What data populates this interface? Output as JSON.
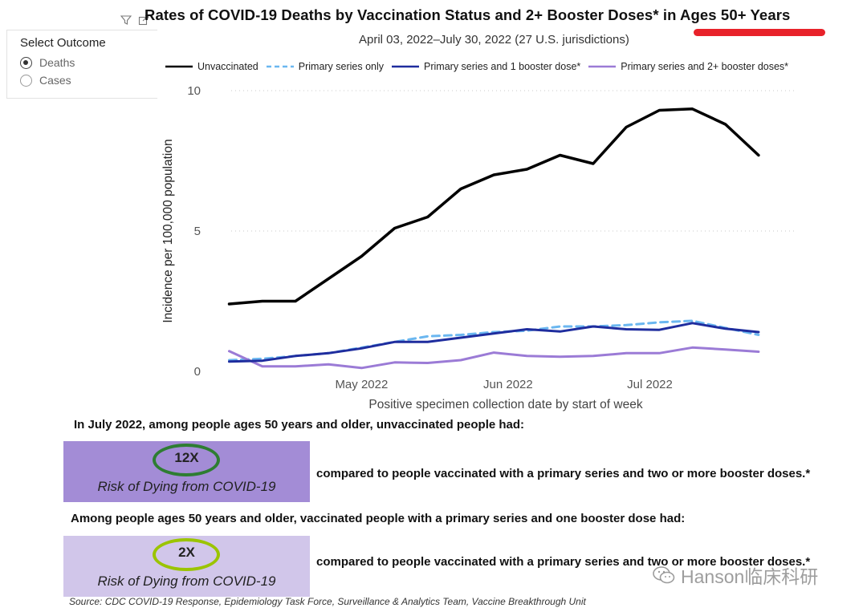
{
  "filter": {
    "title": "Select Outcome",
    "options": [
      {
        "label": "Deaths",
        "selected": true
      },
      {
        "label": "Cases",
        "selected": false
      }
    ]
  },
  "header": {
    "title": "Rates of COVID-19 Deaths by Vaccination Status and 2+ Booster Doses* in Ages 50+ Years",
    "subtitle": "April 03, 2022–July 30, 2022 (27 U.S. jurisdictions)",
    "highlight_color": "#e8222a"
  },
  "colors": {
    "unvaccinated": "#000000",
    "primary_only": "#6bb7f0",
    "one_booster": "#1f2d9e",
    "two_booster": "#9b7bd6",
    "box_dark": "#a38cd6",
    "box_light": "#d1c6ea",
    "ring_dark": "#2e7d32",
    "ring_light": "#9bc400"
  },
  "chart_data": {
    "type": "line",
    "title": "Rates of COVID-19 Deaths by Vaccination Status and 2+ Booster Doses* in Ages 50+ Years",
    "subtitle": "April 03, 2022–July 30, 2022 (27 U.S. jurisdictions)",
    "xlabel": "Positive specimen collection date by start of week",
    "ylabel": "Incidence per 100,000 population",
    "ylim": [
      0,
      10
    ],
    "y_ticks": [
      0,
      5,
      10
    ],
    "x_ticks": [
      "May 2022",
      "Jun 2022",
      "Jul 2022"
    ],
    "x": [
      "2022-04-03",
      "2022-04-10",
      "2022-04-17",
      "2022-04-24",
      "2022-05-01",
      "2022-05-08",
      "2022-05-15",
      "2022-05-22",
      "2022-05-29",
      "2022-06-05",
      "2022-06-12",
      "2022-06-19",
      "2022-06-26",
      "2022-07-03",
      "2022-07-10",
      "2022-07-17",
      "2022-07-24"
    ],
    "grid": "horizontal dotted",
    "legend": "top",
    "series": [
      {
        "name": "Unvaccinated",
        "style": "solid",
        "values": [
          2.4,
          2.5,
          2.5,
          3.3,
          4.1,
          5.1,
          5.5,
          6.5,
          7.0,
          7.2,
          7.7,
          7.4,
          8.7,
          9.3,
          9.35,
          8.8,
          7.7
        ]
      },
      {
        "name": "Primary series only",
        "style": "dashed",
        "values": [
          0.4,
          0.45,
          0.55,
          0.65,
          0.85,
          1.05,
          1.25,
          1.3,
          1.4,
          1.45,
          1.6,
          1.6,
          1.65,
          1.75,
          1.8,
          1.55,
          1.3
        ]
      },
      {
        "name": "Primary series and 1 booster dose*",
        "style": "solid",
        "values": [
          0.35,
          0.38,
          0.55,
          0.65,
          0.82,
          1.05,
          1.05,
          1.2,
          1.35,
          1.5,
          1.42,
          1.6,
          1.5,
          1.48,
          1.72,
          1.52,
          1.4
        ]
      },
      {
        "name": "Primary series and 2+ booster doses*",
        "style": "solid",
        "values": [
          0.72,
          0.18,
          0.18,
          0.25,
          0.12,
          0.32,
          0.3,
          0.4,
          0.67,
          0.55,
          0.52,
          0.55,
          0.65,
          0.65,
          0.85,
          0.78,
          0.7
        ]
      }
    ]
  },
  "summary": {
    "statement1": "In July 2022, among people ages 50 years and older, unvaccinated people had:",
    "box1_multiplier": "12X",
    "box1_text": "Risk of Dying from COVID-19",
    "comparison1": "compared to people vaccinated with a primary series and two or more booster doses.*",
    "statement2": "Among people ages 50 years and older, vaccinated people with a primary series and one booster dose had:",
    "box2_multiplier": "2X",
    "box2_text": "Risk of Dying from COVID-19",
    "comparison2": "compared to people vaccinated with a primary series and two or more booster doses.*",
    "source": "Source: CDC COVID-19 Response, Epidemiology Task Force, Surveillance & Analytics Team, Vaccine Breakthrough Unit"
  },
  "watermark": {
    "text": "Hanson临床科研",
    "icon": "wechat-icon"
  },
  "icons": [
    "filter-icon",
    "focus-mode-icon",
    "wechat-icon"
  ]
}
